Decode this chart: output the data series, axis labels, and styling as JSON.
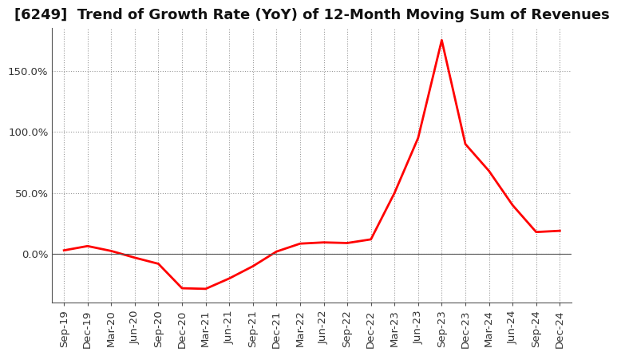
{
  "title": "[6249]  Trend of Growth Rate (YoY) of 12-Month Moving Sum of Revenues",
  "x_labels": [
    "Sep-19",
    "Dec-19",
    "Mar-20",
    "Jun-20",
    "Sep-20",
    "Dec-20",
    "Mar-21",
    "Jun-21",
    "Sep-21",
    "Dec-21",
    "Mar-22",
    "Jun-22",
    "Sep-22",
    "Dec-22",
    "Mar-23",
    "Jun-23",
    "Sep-23",
    "Dec-23",
    "Mar-24",
    "Jun-24",
    "Sep-24",
    "Dec-24"
  ],
  "y_values": [
    3.0,
    6.5,
    2.5,
    -3.0,
    -8.0,
    -28.0,
    -28.5,
    -20.0,
    -10.0,
    2.0,
    8.5,
    9.5,
    9.0,
    12.0,
    50.0,
    95.0,
    175.0,
    90.0,
    68.0,
    40.0,
    18.0,
    19.0
  ],
  "line_color": "#FF0000",
  "line_width": 2.0,
  "background_color": "#FFFFFF",
  "plot_bg_color": "#FFFFFF",
  "grid_color": "#999999",
  "ylim": [
    -40,
    185
  ],
  "yticks": [
    0.0,
    50.0,
    100.0,
    150.0
  ],
  "ytick_labels": [
    "0.0%",
    "50.0%",
    "100.0%",
    "150.0%"
  ],
  "title_fontsize": 13,
  "tick_fontsize": 9.5
}
